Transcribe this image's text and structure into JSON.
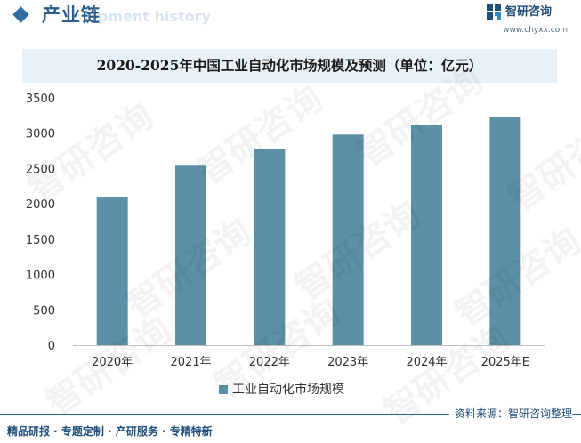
{
  "header": {
    "title": "产业链",
    "subtitle": "pment history"
  },
  "brand": {
    "name": "智研咨询",
    "url": "www.chyxx.com",
    "color": "#1f4e79"
  },
  "watermark": {
    "text": "智研咨询"
  },
  "chart_data": {
    "type": "bar",
    "title": "2020-2025年中国工业自动化市场规模及预测（单位：亿元）",
    "categories": [
      "2020年",
      "2021年",
      "2022年",
      "2023年",
      "2024年",
      "2025年E"
    ],
    "series": [
      {
        "name": "工业自动化市场规模",
        "values": [
          2090,
          2540,
          2770,
          2980,
          3110,
          3230
        ],
        "color": "#5b90a6"
      }
    ],
    "yticks": [
      0,
      500,
      1000,
      1500,
      2000,
      2500,
      3000,
      3500
    ],
    "ylim": [
      0,
      3500
    ],
    "xlabel": "",
    "ylabel": "",
    "legend_position": "bottom",
    "grid": false
  },
  "footer": {
    "source": "资料来源：智研咨询整理",
    "slogan": "精品研报 · 专题定制 · 产研服务 · 专精特新"
  }
}
